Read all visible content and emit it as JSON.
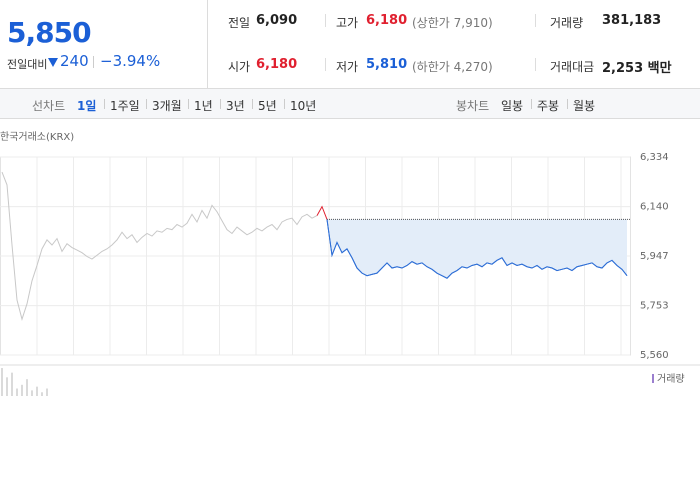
{
  "header": {
    "price": "5,850",
    "change_label": "전일대비",
    "change": "240",
    "change_pct": "−3.94%"
  },
  "stats": [
    [
      {
        "label": "전일",
        "value": "6,090"
      },
      {
        "label": "고가",
        "value": "6,180",
        "note": "(상한가 7,910)"
      },
      {
        "label": "거래량",
        "value": "381,183"
      }
    ],
    [
      {
        "label": "시가",
        "value": "6,180"
      },
      {
        "label": "저가",
        "value": "5,810",
        "note": "(하한가 4,270)"
      },
      {
        "label": "거래대금",
        "value": "2,253 백만"
      }
    ]
  ],
  "tabs": {
    "line_label": "선차트",
    "line_items": [
      "1일",
      "1주일",
      "3개월",
      "1년",
      "3년",
      "5년",
      "10년"
    ],
    "candle_label": "봉차트",
    "candle_items": [
      "일봉",
      "주봉",
      "월봉"
    ]
  },
  "chart_data": {
    "type": "line",
    "source": "한국거래소(KRX)",
    "categories": [
      null,
      null,
      null,
      null,
      null,
      null,
      null,
      null,
      null,
      null,
      null,
      null,
      null,
      null,
      null,
      null,
      null,
      null,
      null,
      null,
      null,
      null,
      null,
      null,
      null,
      null,
      null,
      null,
      null,
      null,
      null,
      null,
      null,
      null,
      null,
      null,
      null,
      null,
      null,
      null,
      null,
      null,
      null,
      null,
      null,
      null,
      null,
      null,
      null,
      null,
      null,
      null,
      null,
      null,
      null,
      null,
      null,
      null,
      null,
      null,
      null,
      null,
      null,
      null,
      null,
      null,
      null,
      null,
      null,
      null,
      null,
      null,
      null,
      null,
      null,
      null,
      null,
      null,
      null,
      null,
      null,
      null,
      null,
      null,
      null,
      null,
      null,
      null,
      null,
      null,
      null,
      null,
      null,
      null,
      null,
      null,
      null,
      null,
      null,
      null,
      null,
      null,
      null,
      null,
      null,
      null,
      null,
      null,
      null,
      null,
      null,
      null,
      null,
      null,
      null,
      null,
      null,
      null,
      null,
      null,
      null,
      null,
      null,
      null,
      null,
      null
    ],
    "ylim": [
      5560,
      6334
    ],
    "yticks": [
      {
        "value": 5560,
        "label": "5,560"
      },
      {
        "value": 5753,
        "label": "5,753"
      },
      {
        "value": 5947,
        "label": "5,947"
      },
      {
        "value": 6140,
        "label": "6,140"
      },
      {
        "value": 6334,
        "label": "6,334"
      }
    ],
    "grid": true,
    "reference_line": 6090,
    "area_color": "#e3edf9",
    "series": [
      {
        "color": "#c8c8c8",
        "values": [
          6275,
          6225,
          5990,
          5775,
          5700,
          5760,
          5850,
          5910,
          5975,
          6010,
          5990,
          6015,
          5965,
          5995,
          5980,
          5970,
          5960,
          5945,
          5935,
          5950,
          5965,
          5975,
          5990,
          6010,
          6040,
          6015,
          6030,
          6000,
          6020,
          6035,
          6025,
          6045,
          6040,
          6055,
          6050,
          6070,
          6060,
          6075,
          6110,
          6080,
          6125,
          6095,
          6145,
          6120,
          6085,
          6050,
          6035,
          6060,
          6045,
          6030,
          6040,
          6055,
          6045,
          6060,
          6070,
          6050,
          6080,
          6090,
          6095,
          6070,
          6100,
          6110,
          6095,
          6105,
          null,
          null,
          null,
          null,
          null,
          null,
          null,
          null,
          null,
          null,
          null,
          null,
          null,
          null,
          null,
          null,
          null,
          null,
          null,
          null,
          null,
          null,
          null,
          null,
          null,
          null,
          null,
          null,
          null,
          null,
          null,
          null,
          null,
          null,
          null,
          null,
          null,
          null,
          null,
          null,
          null,
          null,
          null,
          null,
          null,
          null,
          null,
          null,
          null,
          null,
          null,
          null,
          null,
          null,
          null,
          null,
          null,
          null,
          null,
          null,
          null,
          null
        ]
      },
      {
        "color": "#e0202f",
        "values": [
          null,
          null,
          null,
          null,
          null,
          null,
          null,
          null,
          null,
          null,
          null,
          null,
          null,
          null,
          null,
          null,
          null,
          null,
          null,
          null,
          null,
          null,
          null,
          null,
          null,
          null,
          null,
          null,
          null,
          null,
          null,
          null,
          null,
          null,
          null,
          null,
          null,
          null,
          null,
          null,
          null,
          null,
          null,
          null,
          null,
          null,
          null,
          null,
          null,
          null,
          null,
          null,
          null,
          null,
          null,
          null,
          null,
          null,
          null,
          null,
          null,
          null,
          null,
          6105,
          6140,
          6090,
          null,
          null,
          null,
          null,
          null,
          null,
          null,
          null,
          null,
          null,
          null,
          null,
          null,
          null,
          null,
          null,
          null,
          null,
          null,
          null,
          null,
          null,
          null,
          null,
          null,
          null,
          null,
          null,
          null,
          null,
          null,
          null,
          null,
          null,
          null,
          null,
          null,
          null,
          null,
          null,
          null,
          null,
          null,
          null,
          null,
          null,
          null,
          null,
          null,
          null,
          null,
          null,
          null,
          null,
          null,
          null,
          null,
          null,
          null,
          null
        ]
      },
      {
        "color": "#2f6fd6",
        "area": true,
        "values": [
          null,
          null,
          null,
          null,
          null,
          null,
          null,
          null,
          null,
          null,
          null,
          null,
          null,
          null,
          null,
          null,
          null,
          null,
          null,
          null,
          null,
          null,
          null,
          null,
          null,
          null,
          null,
          null,
          null,
          null,
          null,
          null,
          null,
          null,
          null,
          null,
          null,
          null,
          null,
          null,
          null,
          null,
          null,
          null,
          null,
          null,
          null,
          null,
          null,
          null,
          null,
          null,
          null,
          null,
          null,
          null,
          null,
          null,
          null,
          null,
          null,
          null,
          null,
          null,
          null,
          6090,
          5950,
          6000,
          5960,
          5975,
          5940,
          5900,
          5880,
          5870,
          5875,
          5880,
          5900,
          5920,
          5900,
          5905,
          5900,
          5910,
          5925,
          5915,
          5920,
          5905,
          5895,
          5880,
          5870,
          5860,
          5880,
          5890,
          5905,
          5900,
          5910,
          5915,
          5905,
          5920,
          5915,
          5930,
          5940,
          5910,
          5920,
          5910,
          5915,
          5905,
          5900,
          5910,
          5895,
          5905,
          5900,
          5890,
          5895,
          5900,
          5890,
          5905,
          5910,
          5915,
          5920,
          5905,
          5900,
          5920,
          5930,
          5910,
          5895,
          5870
        ]
      }
    ],
    "volume": {
      "name": "거래량",
      "color": "#b4b4b4",
      "legend_color": "#9b7fcf",
      "values": [
        30,
        20,
        25,
        8,
        12,
        18,
        6,
        10,
        4,
        8,
        null,
        null,
        null,
        null,
        null,
        null,
        null,
        null,
        null,
        null,
        null,
        null,
        null,
        null,
        null,
        null,
        null,
        null,
        null,
        null,
        null,
        null,
        null,
        null,
        null,
        null,
        null,
        null,
        null,
        null,
        null,
        null,
        null,
        null,
        null,
        null,
        null,
        null,
        null,
        null,
        null,
        null,
        null,
        null,
        null,
        null,
        null,
        null,
        null,
        null,
        null,
        null,
        null,
        null,
        null,
        null,
        null,
        null,
        null,
        null,
        null,
        null,
        null,
        null,
        null,
        null,
        null,
        null,
        null,
        null,
        null,
        null,
        null,
        null,
        null,
        null,
        null,
        null,
        null,
        null,
        null,
        null,
        null,
        null,
        null,
        null,
        null,
        null,
        null,
        null,
        null,
        null,
        null,
        null,
        null,
        null,
        null,
        null,
        null,
        null,
        null,
        null,
        null,
        null,
        null,
        null,
        null,
        null,
        null,
        null,
        null,
        null,
        null,
        null,
        null,
        null
      ]
    }
  }
}
